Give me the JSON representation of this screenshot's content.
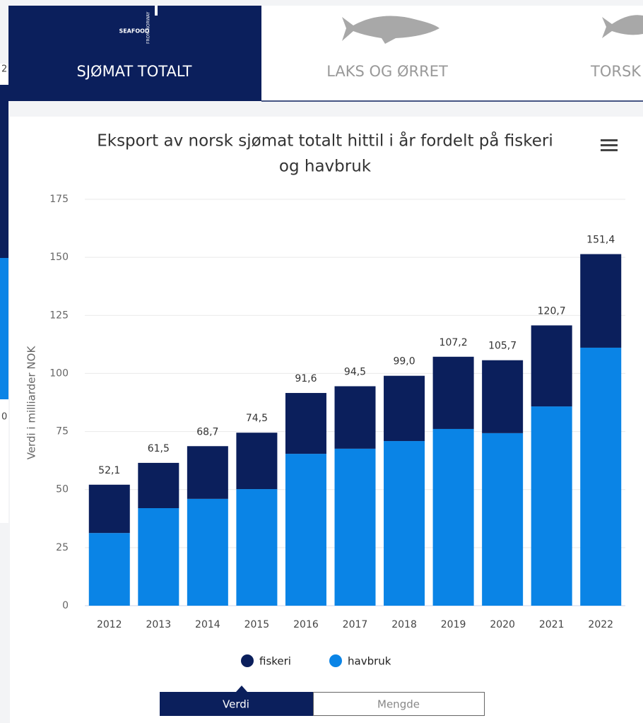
{
  "nav": {
    "logo": "SEAFOOD",
    "logo_sub": "FROM NORWAY",
    "tabs": [
      "SJØMAT TOTALT",
      "LAKS OG ØRRET",
      "TORSK"
    ]
  },
  "fragment_labels": [
    "2",
    "0"
  ],
  "chart_data": {
    "type": "stacked_bar",
    "title": "Eksport av norsk sjømat totalt hittil i år fordelt på fiskeri og havbruk",
    "y_label": "Verdi i milliarder NOK",
    "categories": [
      "2012",
      "2013",
      "2014",
      "2015",
      "2016",
      "2017",
      "2018",
      "2019",
      "2020",
      "2021",
      "2022"
    ],
    "series": [
      {
        "name": "fiskeri",
        "color": "#0b1f5c",
        "values": [
          20.8,
          19.5,
          22.7,
          24.3,
          26.2,
          26.9,
          28.1,
          31.1,
          31.4,
          34.9,
          40.3
        ]
      },
      {
        "name": "havbruk",
        "color": "#0a84e6",
        "values": [
          31.3,
          42.0,
          46.0,
          50.2,
          65.4,
          67.6,
          70.9,
          76.1,
          74.3,
          85.8,
          111.1
        ]
      }
    ],
    "stack_labels": [
      "52,1",
      "61,5",
      "68,7",
      "74,5",
      "91,6",
      "94,5",
      "99,0",
      "107,2",
      "105,7",
      "120,7",
      "151,4"
    ],
    "ylim": [
      0,
      175
    ],
    "yticks": [
      0,
      25,
      50,
      75,
      100,
      125,
      150,
      175
    ],
    "grid": true,
    "legend": "bottom"
  },
  "buttons": [
    "Verdi",
    "Mengde"
  ]
}
